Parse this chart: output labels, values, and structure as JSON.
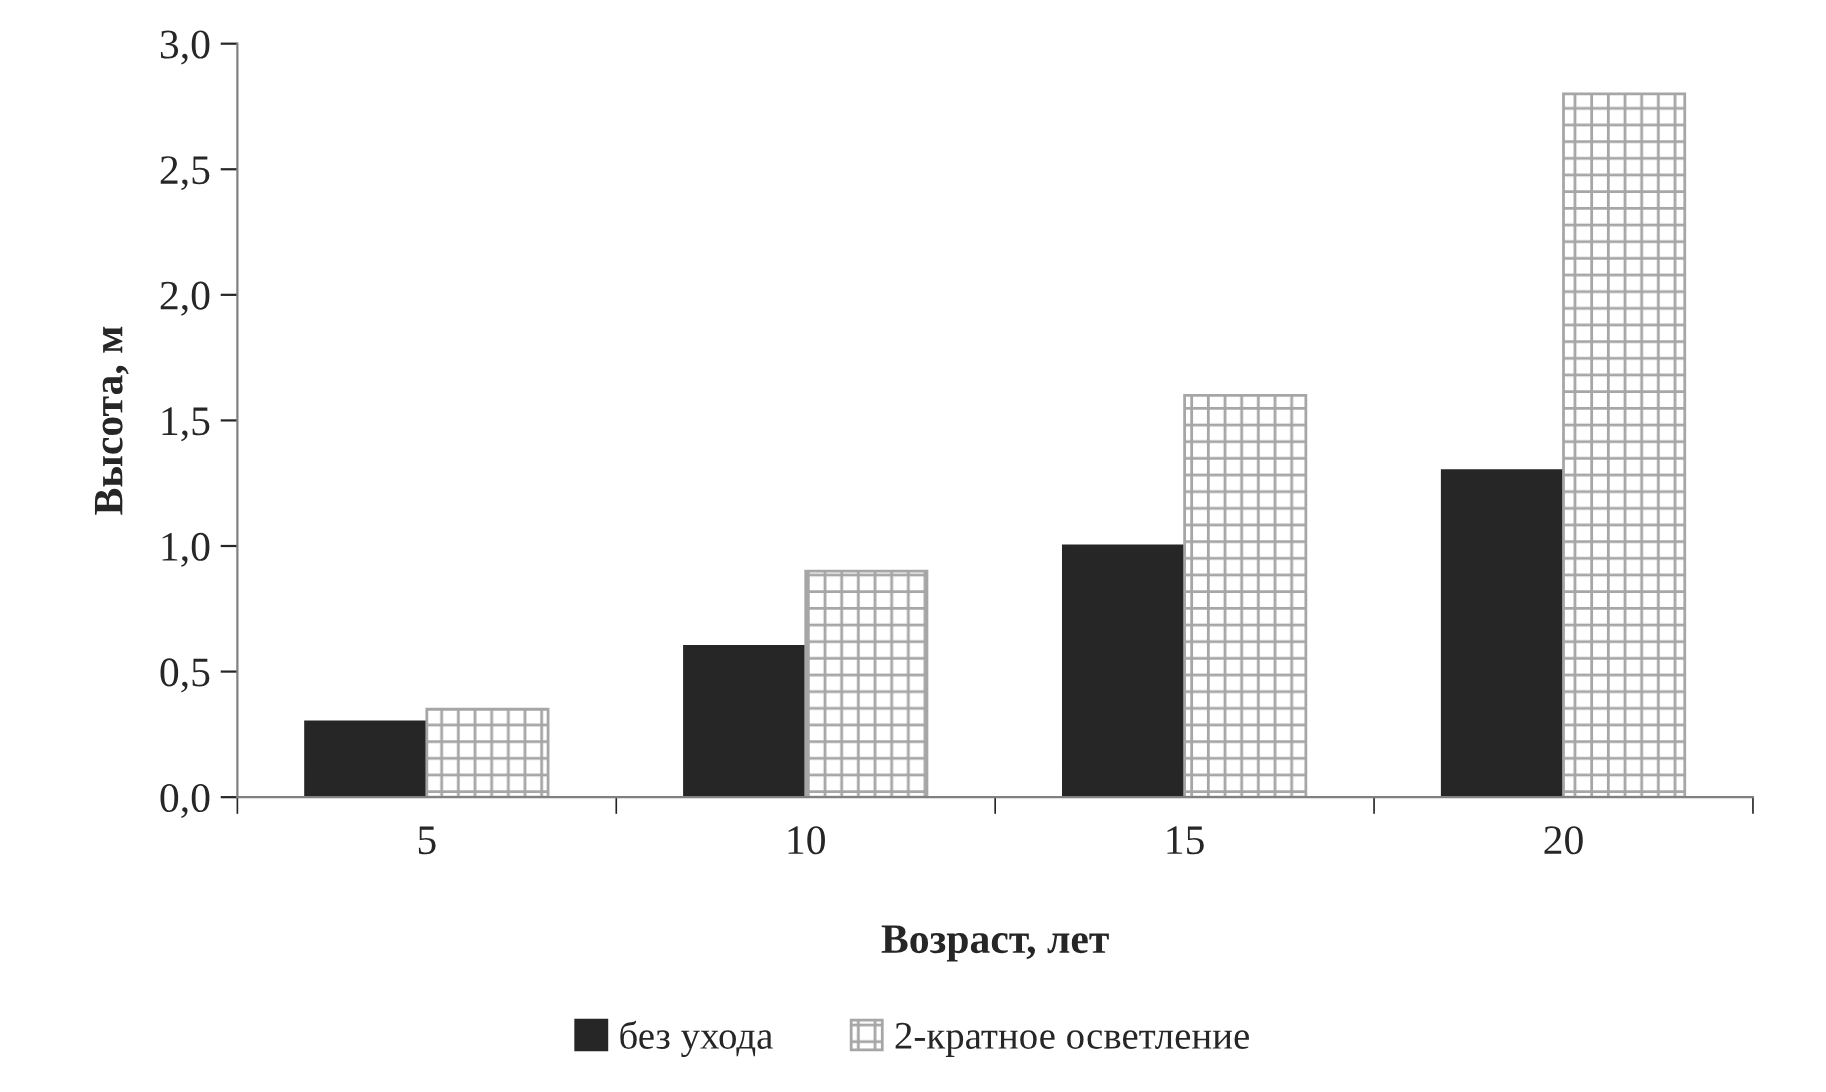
{
  "chart_data": {
    "type": "bar",
    "xlabel": "Возраст, лет",
    "ylabel": "Высота, м",
    "categories": [
      "5",
      "10",
      "15",
      "20"
    ],
    "series": [
      {
        "name": "без ухода",
        "color": "#262626",
        "values": [
          0.3,
          0.6,
          1.0,
          1.3
        ]
      },
      {
        "name": "2-кратное осветление",
        "color": "#a6a6a6",
        "values": [
          0.35,
          0.9,
          1.6,
          2.8
        ]
      }
    ],
    "ylim": [
      0,
      3.0
    ],
    "yticks": [
      {
        "value": 0,
        "label": "0,0"
      },
      {
        "value": 0.5,
        "label": "0,5"
      },
      {
        "value": 1.0,
        "label": "1,0"
      },
      {
        "value": 1.5,
        "label": "1,5"
      },
      {
        "value": 2.0,
        "label": "2,0"
      },
      {
        "value": 2.5,
        "label": "2,5"
      },
      {
        "value": 3.0,
        "label": "3,0"
      }
    ],
    "grid": false,
    "legend": "bottom"
  }
}
